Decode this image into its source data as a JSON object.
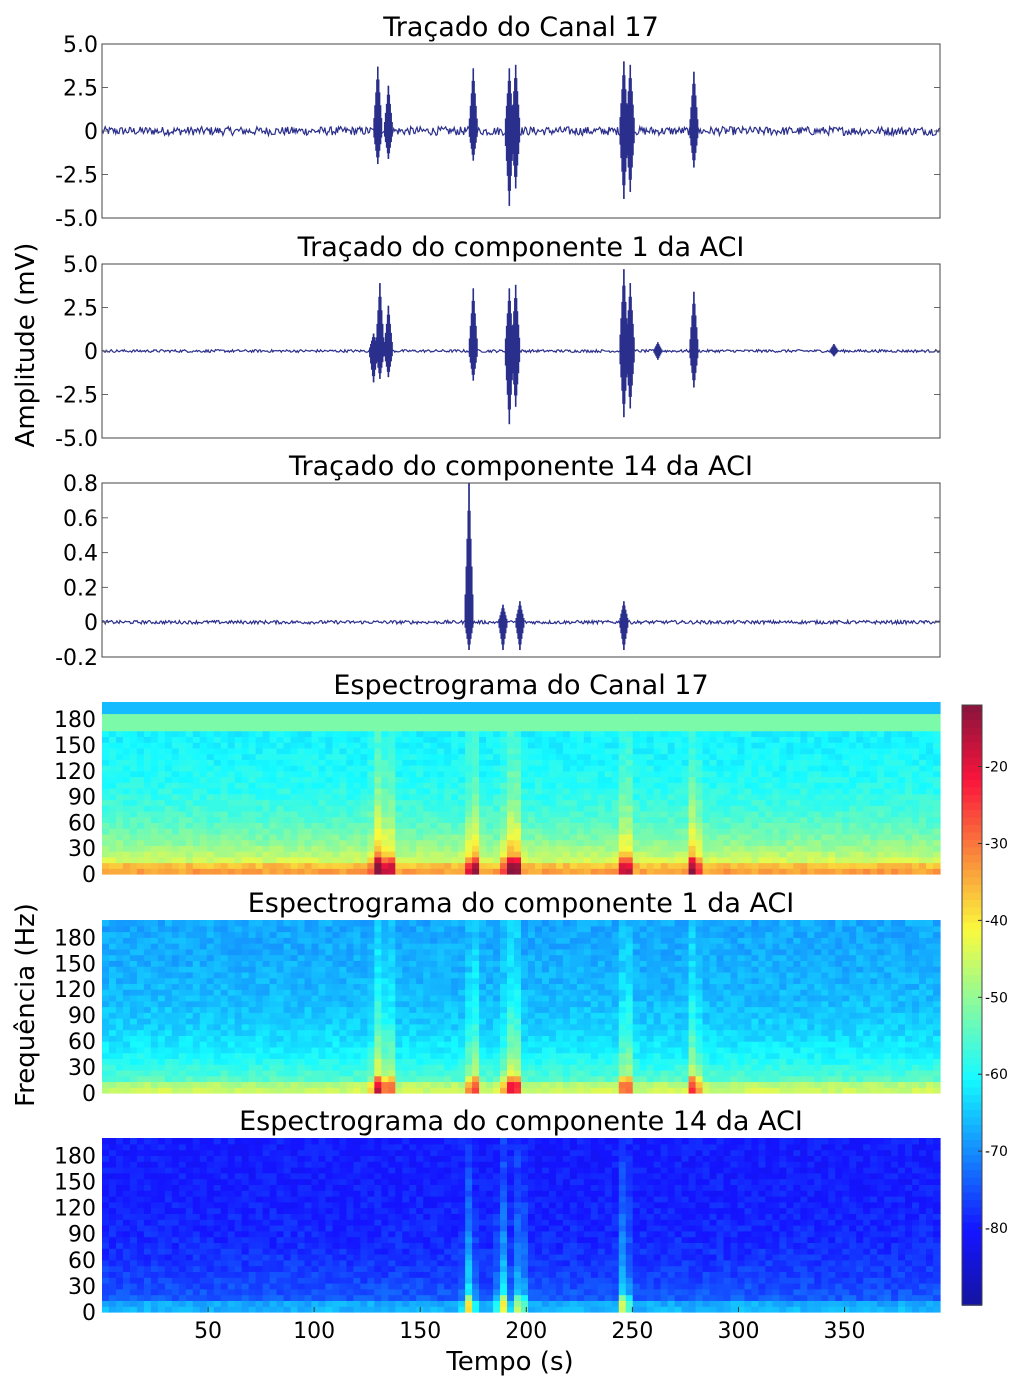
{
  "figure": {
    "ylabel_top": "Amplitude (mV)",
    "ylabel_bottom": "Frequência (Hz)",
    "xlabel": "Tempo (s)"
  },
  "chart_data": [
    {
      "type": "line",
      "title": "Traçado do Canal 17",
      "ylim": [
        -5.0,
        5.0
      ],
      "yticks": [
        "5.0",
        "2.5",
        "0",
        "-2.5",
        "-5.0"
      ],
      "xlim": [
        0,
        395
      ],
      "color": "#2b2f8c",
      "noise_amplitude": 0.25,
      "bursts": [
        {
          "x": 130,
          "min": -1.9,
          "max": 3.7
        },
        {
          "x": 135,
          "min": -1.6,
          "max": 2.6
        },
        {
          "x": 175,
          "min": -1.7,
          "max": 3.6
        },
        {
          "x": 192,
          "min": -4.3,
          "max": 3.6
        },
        {
          "x": 195,
          "min": -3.3,
          "max": 3.8
        },
        {
          "x": 246,
          "min": -3.9,
          "max": 4.0
        },
        {
          "x": 249,
          "min": -3.5,
          "max": 3.8
        },
        {
          "x": 279,
          "min": -2.1,
          "max": 3.4
        }
      ]
    },
    {
      "type": "line",
      "title": "Traçado do componente 1 da ACI",
      "ylim": [
        -5.0,
        5.0
      ],
      "yticks": [
        "5.0",
        "2.5",
        "0",
        "-2.5",
        "-5.0"
      ],
      "xlim": [
        0,
        395
      ],
      "color": "#2b2f8c",
      "noise_amplitude": 0.08,
      "bursts": [
        {
          "x": 128,
          "min": -1.8,
          "max": 1.0
        },
        {
          "x": 131,
          "min": -1.6,
          "max": 3.9
        },
        {
          "x": 135,
          "min": -1.5,
          "max": 2.6
        },
        {
          "x": 175,
          "min": -1.7,
          "max": 3.6
        },
        {
          "x": 192,
          "min": -4.2,
          "max": 3.6
        },
        {
          "x": 195,
          "min": -3.2,
          "max": 3.8
        },
        {
          "x": 246,
          "min": -3.8,
          "max": 4.7
        },
        {
          "x": 249,
          "min": -3.3,
          "max": 3.9
        },
        {
          "x": 262,
          "min": -0.5,
          "max": 0.5
        },
        {
          "x": 279,
          "min": -2.1,
          "max": 3.4
        },
        {
          "x": 345,
          "min": -0.3,
          "max": 0.4
        }
      ]
    },
    {
      "type": "line",
      "title": "Traçado do componente 14 da ACI",
      "ylim": [
        -0.2,
        0.8
      ],
      "yticks": [
        "0.8",
        "0.6",
        "0.4",
        "0.2",
        "0",
        "-0.2"
      ],
      "xlim": [
        0,
        395
      ],
      "color": "#2b2f8c",
      "noise_amplitude": 0.01,
      "bursts": [
        {
          "x": 173,
          "min": -0.16,
          "max": 0.8
        },
        {
          "x": 189,
          "min": -0.16,
          "max": 0.1
        },
        {
          "x": 197,
          "min": -0.16,
          "max": 0.12
        },
        {
          "x": 246,
          "min": -0.16,
          "max": 0.12
        }
      ]
    },
    {
      "type": "heatmap",
      "title": "Espectrograma do Canal 17",
      "yticks": [
        "180",
        "150",
        "120",
        "90",
        "60",
        "30",
        "0"
      ],
      "ylim": [
        0,
        200
      ],
      "xlim": [
        0,
        395
      ],
      "baseline_level": -62,
      "low_freq_level": -38,
      "hot_times": [
        130,
        135,
        175,
        192,
        195,
        247,
        279
      ],
      "band_180hz": true
    },
    {
      "type": "heatmap",
      "title": "Espectrograma do componente 1 da ACI",
      "yticks": [
        "180",
        "150",
        "120",
        "90",
        "60",
        "30",
        "0"
      ],
      "ylim": [
        0,
        200
      ],
      "xlim": [
        0,
        395
      ],
      "baseline_level": -68,
      "low_freq_level": -50,
      "hot_times": [
        130,
        135,
        175,
        192,
        195,
        247,
        279
      ],
      "band_180hz": false
    },
    {
      "type": "heatmap",
      "title": "Espectrograma do componente 14 da ACI",
      "yticks": [
        "180",
        "150",
        "120",
        "90",
        "60",
        "30",
        "0"
      ],
      "ylim": [
        0,
        200
      ],
      "xlim": [
        0,
        395
      ],
      "baseline_level": -80,
      "low_freq_level": -72,
      "hot_times": [
        173,
        189,
        197,
        246
      ],
      "band_180hz": false
    }
  ],
  "xaxis": {
    "ticks": [
      50,
      100,
      150,
      200,
      250,
      300,
      350
    ],
    "tick_labels": [
      "50",
      "100",
      "150",
      "200",
      "250",
      "300",
      "350"
    ]
  },
  "colorbar": {
    "range": [
      -90,
      -12
    ],
    "ticks": [
      -20,
      -30,
      -40,
      -50,
      -60,
      -70,
      -80
    ],
    "tick_labels": [
      "-20",
      "-30",
      "-40",
      "-50",
      "-60",
      "-70",
      "-80"
    ],
    "colormap": "jet"
  }
}
